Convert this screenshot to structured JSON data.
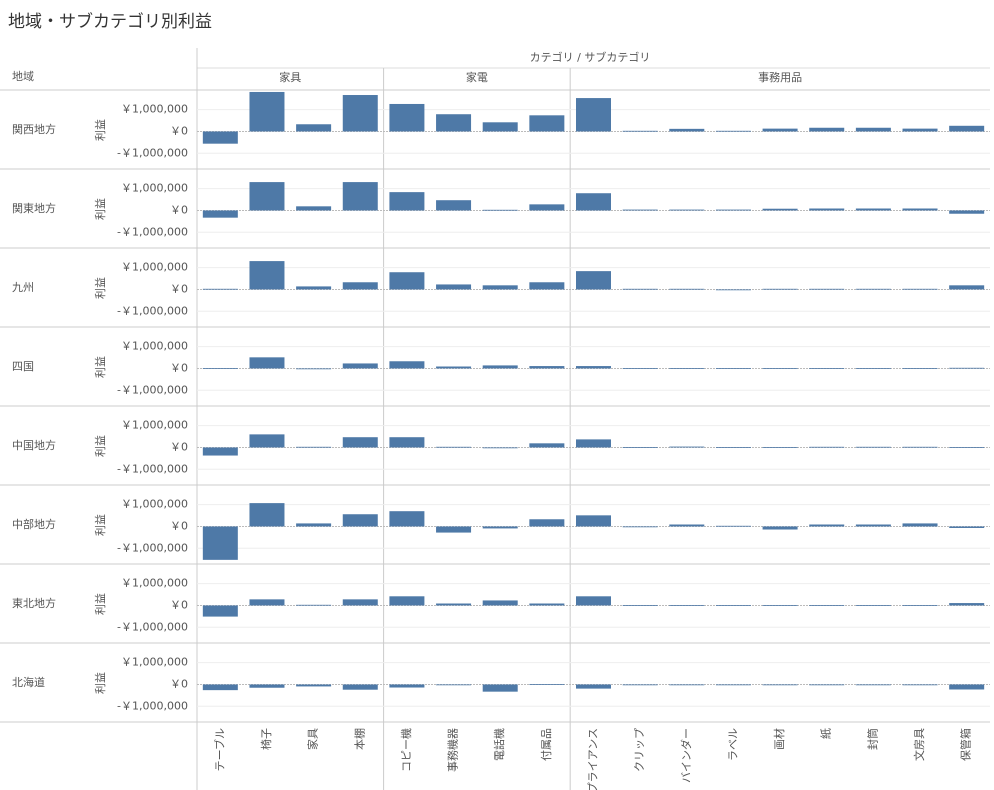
{
  "chart_data": {
    "type": "bar",
    "title": "地域・サブカテゴリ別利益",
    "column_header": "カテゴリ / サブカテゴリ",
    "row_header": "地域",
    "y_label": "利益",
    "color": "#4e79a7",
    "regions": [
      "関西地方",
      "関東地方",
      "九州",
      "四国",
      "中国地方",
      "中部地方",
      "東北地方",
      "北海道"
    ],
    "groups": [
      {
        "name": "家具",
        "subcategories": [
          "テーブル",
          "椅子",
          "家具",
          "本棚"
        ]
      },
      {
        "name": "家電",
        "subcategories": [
          "コピー機",
          "事務機器",
          "電話機",
          "付属品"
        ]
      },
      {
        "name": "事務用品",
        "subcategories": [
          "アプライアンス",
          "クリップ",
          "バインダー",
          "ラベル",
          "画材",
          "紙",
          "封筒",
          "文房具",
          "保管箱"
        ]
      }
    ],
    "values": [
      [
        -560000,
        1810000,
        330000,
        1670000,
        1260000,
        790000,
        420000,
        740000,
        1530000,
        30000,
        120000,
        30000,
        130000,
        170000,
        170000,
        130000,
        260000
      ],
      [
        -330000,
        1300000,
        190000,
        1300000,
        840000,
        470000,
        30000,
        280000,
        790000,
        40000,
        40000,
        40000,
        80000,
        90000,
        90000,
        90000,
        -150000
      ],
      [
        30000,
        1300000,
        140000,
        330000,
        790000,
        230000,
        190000,
        330000,
        840000,
        30000,
        30000,
        -20000,
        30000,
        30000,
        30000,
        30000,
        190000
      ],
      [
        20000,
        510000,
        -20000,
        230000,
        330000,
        90000,
        140000,
        110000,
        110000,
        20000,
        20000,
        20000,
        20000,
        20000,
        20000,
        20000,
        30000
      ],
      [
        -370000,
        600000,
        30000,
        470000,
        470000,
        30000,
        -20000,
        190000,
        370000,
        20000,
        40000,
        20000,
        20000,
        30000,
        30000,
        30000,
        20000
      ],
      [
        -1530000,
        1070000,
        140000,
        560000,
        700000,
        -280000,
        -90000,
        330000,
        510000,
        -20000,
        90000,
        30000,
        -140000,
        90000,
        90000,
        140000,
        -70000
      ],
      [
        -510000,
        280000,
        30000,
        280000,
        420000,
        90000,
        230000,
        90000,
        420000,
        20000,
        20000,
        20000,
        20000,
        20000,
        20000,
        20000,
        110000
      ],
      [
        -260000,
        -150000,
        -90000,
        -240000,
        -140000,
        -20000,
        -330000,
        20000,
        -190000,
        -30000,
        -30000,
        -30000,
        -30000,
        -30000,
        -30000,
        -30000,
        -230000
      ]
    ],
    "ylim": [
      -1720000,
      1900000
    ],
    "yticks": [
      {
        "value": 1000000,
        "label": "￥1,000,000"
      },
      {
        "value": 0,
        "label": "￥0"
      },
      {
        "value": -1000000,
        "label": "-￥1,000,000"
      }
    ]
  }
}
